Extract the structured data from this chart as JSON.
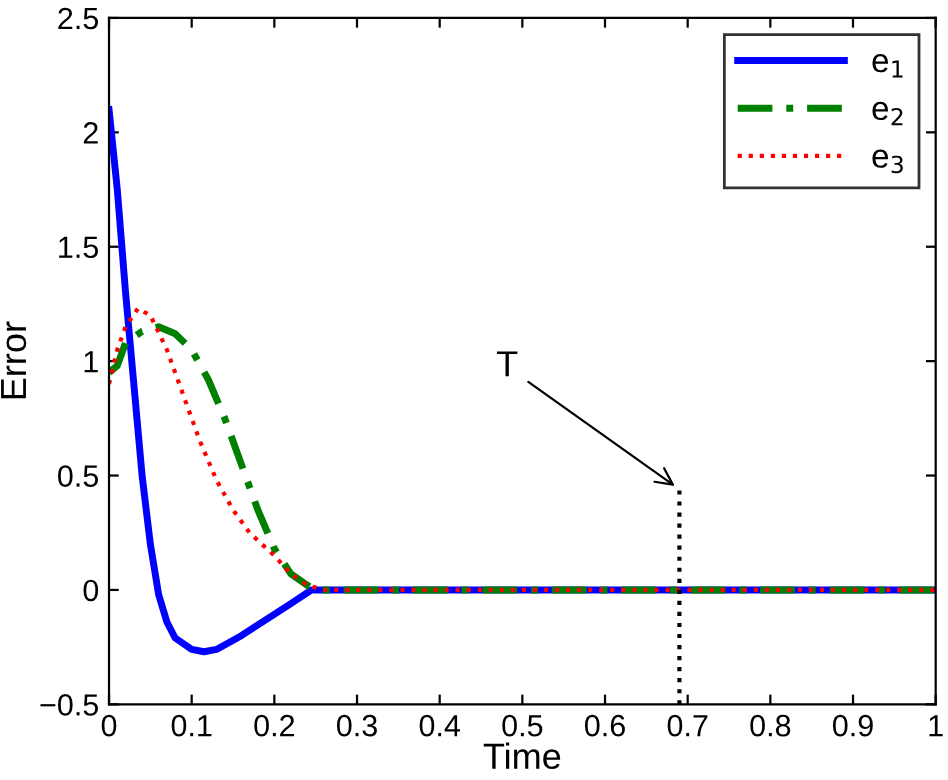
{
  "chart_data": {
    "type": "line",
    "xlabel": "Time",
    "ylabel": "Error",
    "xlim": [
      0,
      1
    ],
    "ylim": [
      -0.5,
      2.5
    ],
    "xticks": [
      0,
      0.1,
      0.2,
      0.3,
      0.4,
      0.5,
      0.6,
      0.7,
      0.8,
      0.9,
      1
    ],
    "yticks": [
      -0.5,
      0,
      0.5,
      1,
      1.5,
      2,
      2.5
    ],
    "grid": false,
    "legend": "top right",
    "marker": "none",
    "series": [
      {
        "name": "e$_{1}$",
        "color": "#0000ff",
        "line_style": "solid",
        "x": [
          0,
          0.01,
          0.02,
          0.03,
          0.04,
          0.05,
          0.06,
          0.07,
          0.08,
          0.1,
          0.115,
          0.13,
          0.16,
          0.19,
          0.22,
          0.245,
          1
        ],
        "values": [
          2.1,
          1.75,
          1.3,
          0.9,
          0.5,
          0.2,
          -0.02,
          -0.14,
          -0.21,
          -0.26,
          -0.27,
          -0.26,
          -0.2,
          -0.13,
          -0.06,
          0,
          0
        ]
      },
      {
        "name": "e$_{2}$",
        "color": "#008000",
        "line_style": "dashed",
        "x": [
          0,
          0.01,
          0.02,
          0.04,
          0.06,
          0.08,
          0.1,
          0.12,
          0.14,
          0.16,
          0.18,
          0.2,
          0.22,
          0.24,
          0.25,
          1
        ],
        "values": [
          0.95,
          0.98,
          1.08,
          1.13,
          1.15,
          1.12,
          1.05,
          0.92,
          0.75,
          0.55,
          0.35,
          0.18,
          0.07,
          0.02,
          0,
          0
        ]
      },
      {
        "name": "e$_{3}$",
        "color": "#ff0000",
        "line_style": "dotted",
        "x": [
          0,
          0.01,
          0.02,
          0.035,
          0.05,
          0.07,
          0.09,
          0.11,
          0.13,
          0.15,
          0.17,
          0.2,
          0.22,
          0.24,
          0.26,
          1
        ],
        "values": [
          0.9,
          1.05,
          1.15,
          1.23,
          1.2,
          1.05,
          0.85,
          0.65,
          0.48,
          0.35,
          0.25,
          0.15,
          0.07,
          0.02,
          0,
          0
        ]
      },
      {
        "color": "#000000",
        "line_style": "dotted",
        "x": [
          0.69,
          0.69
        ],
        "values": [
          -0.5,
          0.44
        ]
      }
    ],
    "annotations": [
      {
        "text": "T",
        "x": 0.69,
        "y": 0.44
      }
    ]
  }
}
